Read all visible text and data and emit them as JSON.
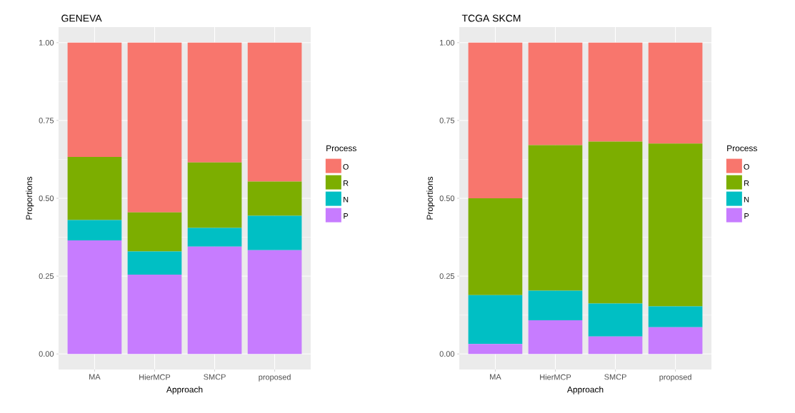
{
  "chart_data": [
    {
      "type": "bar",
      "title": "GENEVA",
      "xlabel": "Approach",
      "ylabel": "Proportions",
      "legend_title": "Process",
      "stacked": true,
      "grid": true,
      "legend": "right",
      "categories": [
        "MA",
        "HierMCP",
        "SMCP",
        "proposed"
      ],
      "ylim": [
        -0.05,
        1.05
      ],
      "yticks": [
        {
          "value": 0,
          "label": "0.00"
        },
        {
          "value": 0.25,
          "label": "0.25"
        },
        {
          "value": 0.5,
          "label": "0.50"
        },
        {
          "value": 0.75,
          "label": "0.75"
        },
        {
          "value": 1,
          "label": "1.00"
        }
      ],
      "series": [
        {
          "name": "P",
          "color": "#C77CFF",
          "values": [
            0.365,
            0.255,
            0.345,
            0.333
          ]
        },
        {
          "name": "N",
          "color": "#00BFC4",
          "values": [
            0.065,
            0.074,
            0.06,
            0.111
          ]
        },
        {
          "name": "R",
          "color": "#7CAE00",
          "values": [
            0.203,
            0.126,
            0.21,
            0.11
          ]
        },
        {
          "name": "O",
          "color": "#F8766D",
          "values": [
            0.367,
            0.545,
            0.385,
            0.446
          ]
        }
      ]
    },
    {
      "type": "bar",
      "title": "TCGA SKCM",
      "xlabel": "Approach",
      "ylabel": "Proportions",
      "legend_title": "Process",
      "stacked": true,
      "grid": true,
      "legend": "right",
      "categories": [
        "MA",
        "HierMCP",
        "SMCP",
        "proposed"
      ],
      "ylim": [
        -0.05,
        1.05
      ],
      "yticks": [
        {
          "value": 0,
          "label": "0.00"
        },
        {
          "value": 0.25,
          "label": "0.25"
        },
        {
          "value": 0.5,
          "label": "0.50"
        },
        {
          "value": 0.75,
          "label": "0.75"
        },
        {
          "value": 1,
          "label": "1.00"
        }
      ],
      "series": [
        {
          "name": "P",
          "color": "#C77CFF",
          "values": [
            0.032,
            0.108,
            0.056,
            0.086
          ]
        },
        {
          "name": "N",
          "color": "#00BFC4",
          "values": [
            0.157,
            0.095,
            0.106,
            0.067
          ]
        },
        {
          "name": "R",
          "color": "#7CAE00",
          "values": [
            0.311,
            0.468,
            0.52,
            0.523
          ]
        },
        {
          "name": "O",
          "color": "#F8766D",
          "values": [
            0.5,
            0.329,
            0.318,
            0.324
          ]
        }
      ]
    }
  ]
}
